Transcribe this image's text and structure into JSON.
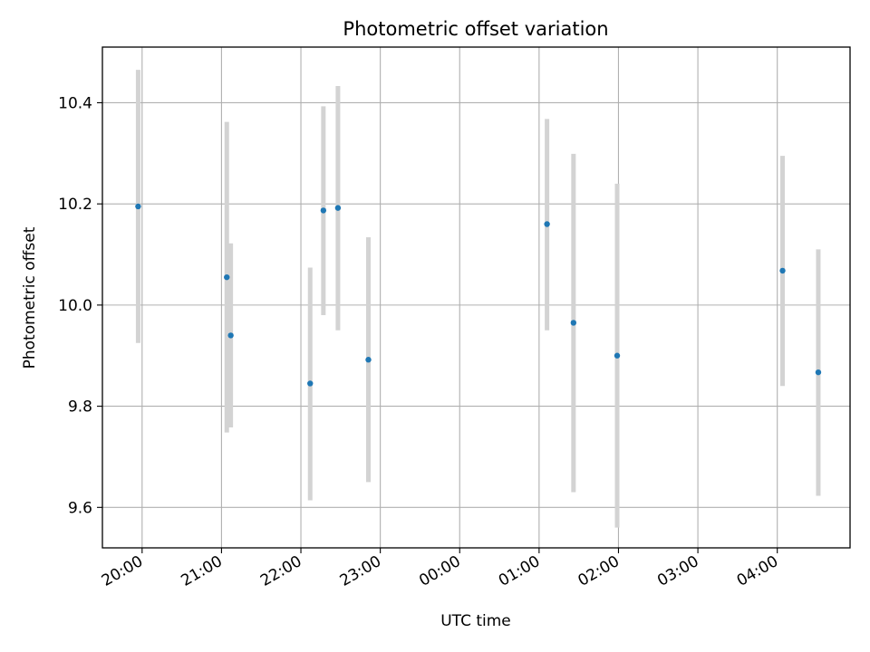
{
  "chart_data": {
    "type": "scatter",
    "title": "Photometric offset variation",
    "xlabel": "UTC time",
    "ylabel": "Photometric offset",
    "x_tick_labels": [
      "20:00",
      "21:00",
      "22:00",
      "23:00",
      "00:00",
      "01:00",
      "02:00",
      "03:00",
      "04:00"
    ],
    "y_ticks": [
      9.6,
      9.8,
      10.0,
      10.2,
      10.4
    ],
    "y_tick_labels": [
      "9.6",
      "9.8",
      "10.0",
      "10.2",
      "10.4"
    ],
    "xlim": [
      "19:30",
      "04:55"
    ],
    "ylim": [
      9.52,
      10.51
    ],
    "grid": true,
    "series": [
      {
        "marker_color": "#1f77b4",
        "errorbar_color": "#d3d3d3",
        "points": [
          {
            "time": "19:57",
            "value": 10.195,
            "err_low": 9.925,
            "err_high": 10.465
          },
          {
            "time": "21:04",
            "value": 10.055,
            "err_low": 9.748,
            "err_high": 10.362
          },
          {
            "time": "21:07",
            "value": 9.94,
            "err_low": 9.758,
            "err_high": 10.122
          },
          {
            "time": "22:07",
            "value": 9.845,
            "err_low": 9.614,
            "err_high": 10.074
          },
          {
            "time": "22:17",
            "value": 10.187,
            "err_low": 9.98,
            "err_high": 10.393
          },
          {
            "time": "22:28",
            "value": 10.192,
            "err_low": 9.95,
            "err_high": 10.433
          },
          {
            "time": "22:51",
            "value": 9.892,
            "err_low": 9.65,
            "err_high": 10.134
          },
          {
            "time": "01:06",
            "value": 10.16,
            "err_low": 9.95,
            "err_high": 10.368
          },
          {
            "time": "01:26",
            "value": 9.965,
            "err_low": 9.63,
            "err_high": 10.299
          },
          {
            "time": "01:59",
            "value": 9.9,
            "err_low": 9.56,
            "err_high": 10.24
          },
          {
            "time": "04:04",
            "value": 10.068,
            "err_low": 9.84,
            "err_high": 10.295
          },
          {
            "time": "04:31",
            "value": 9.867,
            "err_low": 9.623,
            "err_high": 10.11
          }
        ]
      }
    ]
  }
}
